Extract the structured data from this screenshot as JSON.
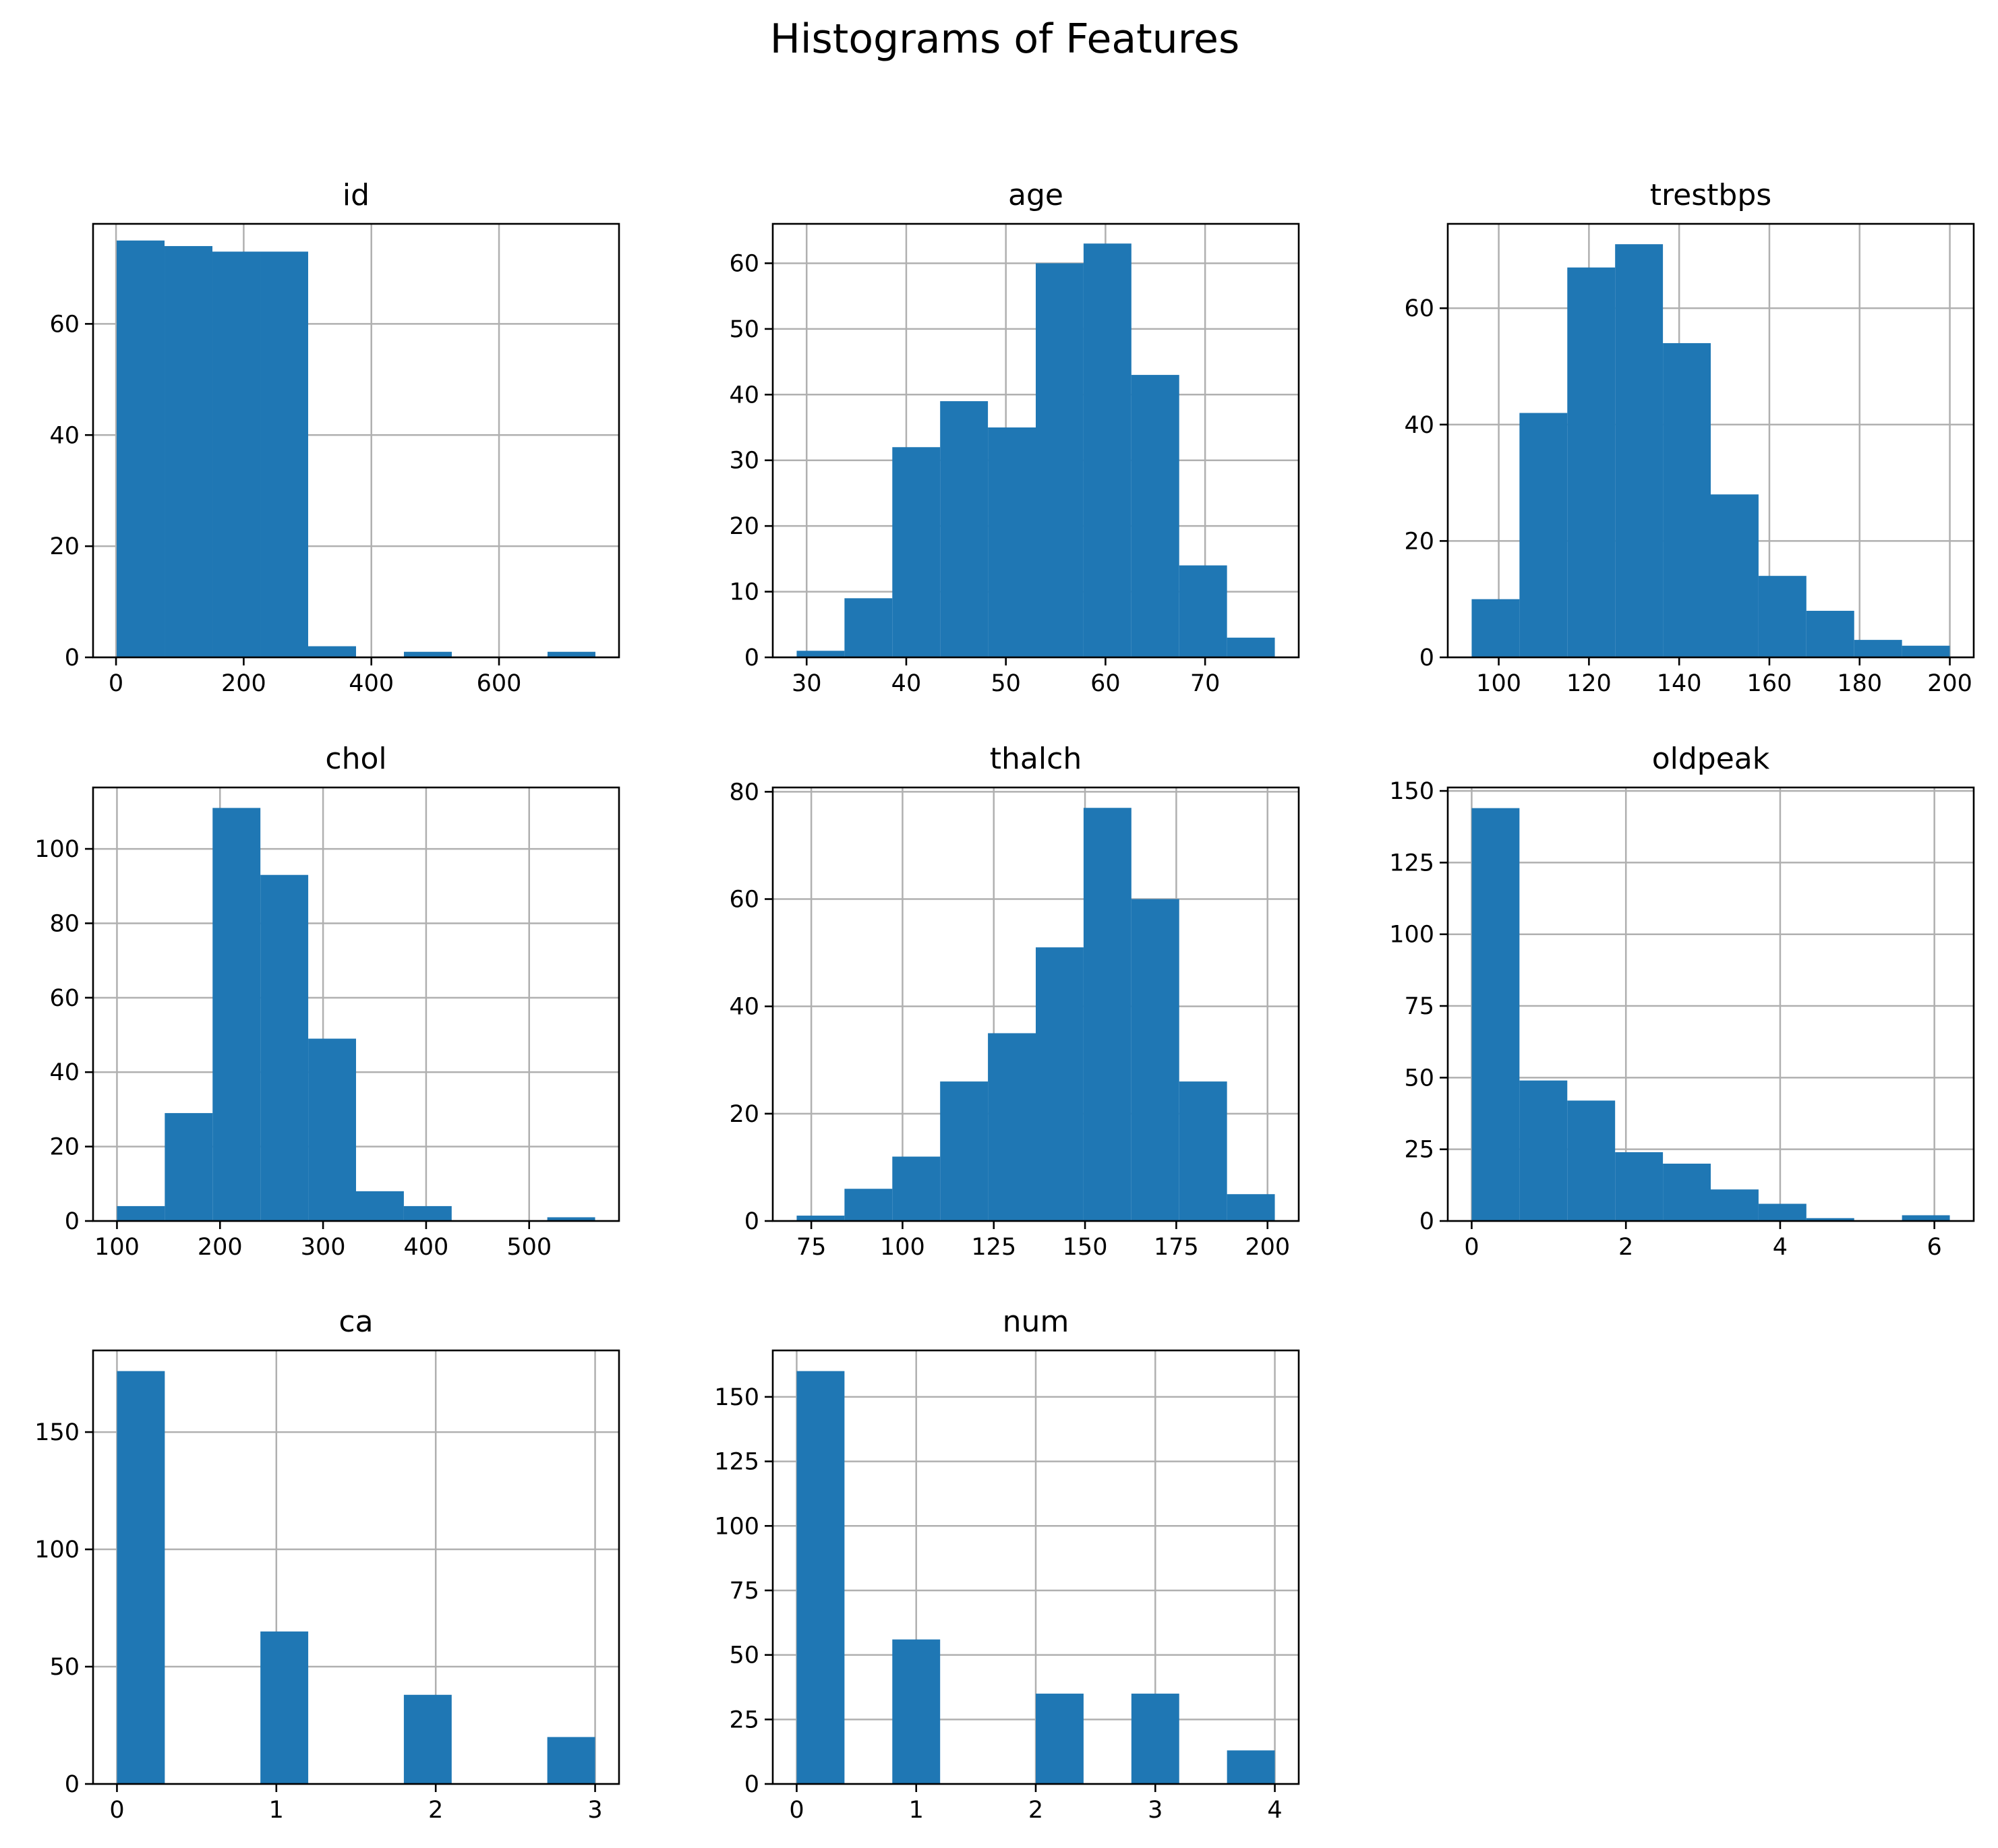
{
  "title": "Histograms of Features",
  "bar_color": "#1f77b4",
  "chart_data": [
    {
      "type": "bar",
      "title": "id",
      "bins": [
        [
          1,
          75
        ],
        [
          76,
          74
        ],
        [
          151,
          73
        ],
        [
          226,
          73
        ],
        [
          301,
          2
        ],
        [
          376,
          0
        ],
        [
          451,
          1
        ],
        [
          526,
          0
        ],
        [
          601,
          0
        ],
        [
          676,
          1
        ]
      ],
      "xlim": [
        -36,
        788
      ],
      "ylim": [
        0,
        78
      ],
      "xticks": [
        0,
        200,
        400,
        600
      ],
      "yticks": [
        0,
        20,
        40,
        60
      ]
    },
    {
      "type": "bar",
      "title": "age",
      "bins": [
        [
          29,
          1
        ],
        [
          33.8,
          9
        ],
        [
          38.6,
          32
        ],
        [
          43.4,
          39
        ],
        [
          48.2,
          35
        ],
        [
          53,
          60
        ],
        [
          57.8,
          63
        ],
        [
          62.6,
          43
        ],
        [
          67.4,
          14
        ],
        [
          72.2,
          3
        ]
      ],
      "xlim": [
        26.6,
        79.4
      ],
      "ylim": [
        0,
        66
      ],
      "xticks": [
        30,
        40,
        50,
        60,
        70
      ],
      "yticks": [
        0,
        10,
        20,
        30,
        40,
        50,
        60
      ]
    },
    {
      "type": "bar",
      "title": "trestbps",
      "bins": [
        [
          94,
          10
        ],
        [
          104.6,
          42
        ],
        [
          115.2,
          67
        ],
        [
          125.8,
          71
        ],
        [
          136.4,
          54
        ],
        [
          147,
          28
        ],
        [
          157.6,
          14
        ],
        [
          168.2,
          8
        ],
        [
          178.8,
          3
        ],
        [
          189.4,
          2
        ]
      ],
      "xlim": [
        88.7,
        205.3
      ],
      "ylim": [
        0,
        74.5
      ],
      "xticks": [
        100,
        120,
        140,
        160,
        180,
        200
      ],
      "yticks": [
        0,
        20,
        40,
        60
      ]
    },
    {
      "type": "bar",
      "title": "chol",
      "bins": [
        [
          100,
          4
        ],
        [
          146.4,
          29
        ],
        [
          192.8,
          111
        ],
        [
          239.2,
          93
        ],
        [
          285.6,
          49
        ],
        [
          332,
          8
        ],
        [
          378.4,
          4
        ],
        [
          424.8,
          0
        ],
        [
          471.2,
          0
        ],
        [
          517.6,
          1
        ]
      ],
      "xlim": [
        76.8,
        587.2
      ],
      "ylim": [
        0,
        116.5
      ],
      "xticks": [
        100,
        200,
        300,
        400,
        500
      ],
      "yticks": [
        0,
        20,
        40,
        60,
        80,
        100
      ]
    },
    {
      "type": "bar",
      "title": "thalch",
      "bins": [
        [
          71,
          1
        ],
        [
          84.1,
          6
        ],
        [
          97.2,
          12
        ],
        [
          110.3,
          26
        ],
        [
          123.4,
          35
        ],
        [
          136.5,
          51
        ],
        [
          149.6,
          77
        ],
        [
          162.7,
          60
        ],
        [
          175.8,
          26
        ],
        [
          188.9,
          5
        ]
      ],
      "xlim": [
        64.45,
        208.55
      ],
      "ylim": [
        0,
        80.8
      ],
      "xticks": [
        75,
        100,
        125,
        150,
        175,
        200
      ],
      "yticks": [
        0,
        20,
        40,
        60,
        80
      ]
    },
    {
      "type": "bar",
      "title": "oldpeak",
      "bins": [
        [
          0,
          144
        ],
        [
          0.62,
          49
        ],
        [
          1.24,
          42
        ],
        [
          1.86,
          24
        ],
        [
          2.48,
          20
        ],
        [
          3.1,
          11
        ],
        [
          3.72,
          6
        ],
        [
          4.34,
          1
        ],
        [
          4.96,
          0
        ],
        [
          5.58,
          2
        ]
      ],
      "xlim": [
        -0.31,
        6.51
      ],
      "ylim": [
        0,
        151.2
      ],
      "xticks": [
        0,
        2,
        4,
        6
      ],
      "yticks": [
        0,
        25,
        50,
        75,
        100,
        125,
        150
      ]
    },
    {
      "type": "bar",
      "title": "ca",
      "bins": [
        [
          0,
          176
        ],
        [
          0.3,
          0
        ],
        [
          0.6,
          0
        ],
        [
          0.9,
          65
        ],
        [
          1.2,
          0
        ],
        [
          1.5,
          0
        ],
        [
          1.8,
          38
        ],
        [
          2.1,
          0
        ],
        [
          2.4,
          0
        ],
        [
          2.7,
          20
        ]
      ],
      "xlim": [
        -0.15,
        3.15
      ],
      "ylim": [
        0,
        184.8
      ],
      "xticks": [
        0,
        1,
        2,
        3
      ],
      "yticks": [
        0,
        50,
        100,
        150
      ]
    },
    {
      "type": "bar",
      "title": "num",
      "bins": [
        [
          0,
          160
        ],
        [
          0.4,
          0
        ],
        [
          0.8,
          56
        ],
        [
          1.2,
          0
        ],
        [
          1.6,
          0
        ],
        [
          2,
          35
        ],
        [
          2.4,
          0
        ],
        [
          2.8,
          35
        ],
        [
          3.2,
          0
        ],
        [
          3.6,
          13
        ]
      ],
      "xlim": [
        -0.2,
        4.2
      ],
      "ylim": [
        0,
        168
      ],
      "xticks": [
        0,
        1,
        2,
        3,
        4
      ],
      "yticks": [
        0,
        25,
        50,
        75,
        100,
        125,
        150
      ]
    }
  ]
}
